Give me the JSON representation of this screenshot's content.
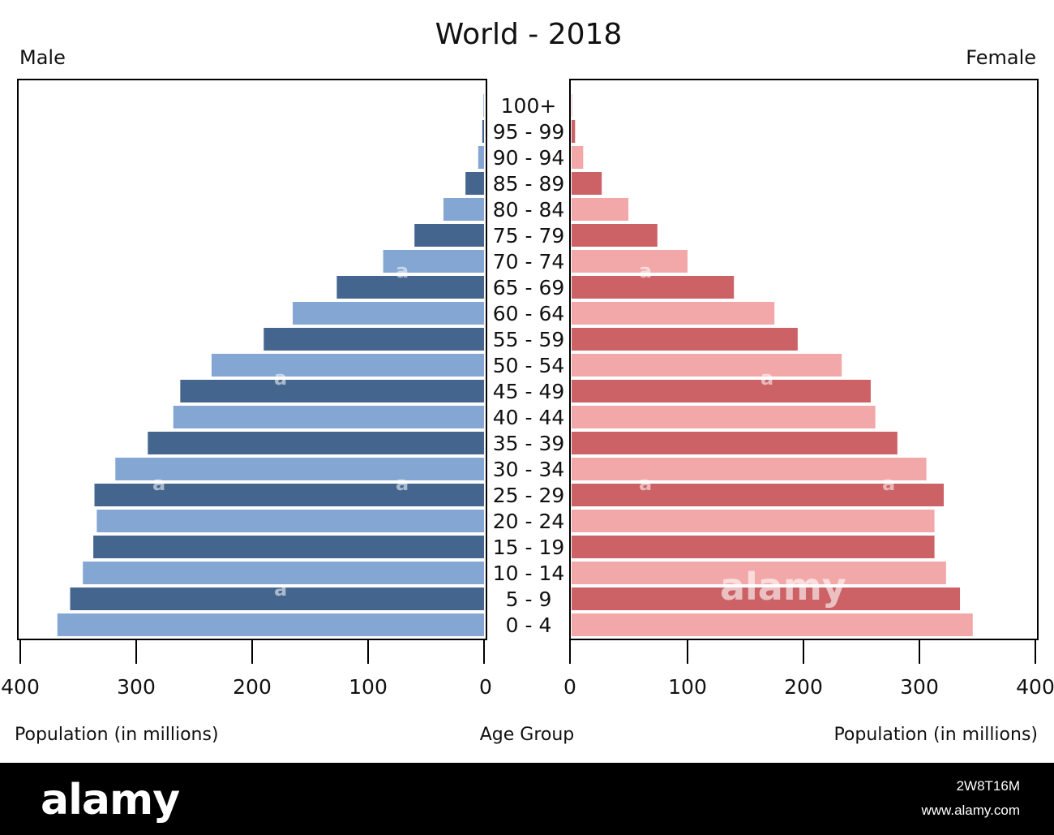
{
  "chart_data": {
    "type": "bar",
    "title": "World - 2018",
    "left_label": "Male",
    "right_label": "Female",
    "center_label": "Age Group",
    "xlabel_left": "Population (in millions)",
    "xlabel_right": "Population (in millions)",
    "xlim": [
      0,
      400
    ],
    "x_ticks": [
      "400",
      "300",
      "200",
      "100",
      "0"
    ],
    "x_ticks_right": [
      "0",
      "100",
      "200",
      "300",
      "400"
    ],
    "categories": [
      "100+",
      "95 - 99",
      "90 - 94",
      "85 - 89",
      "80 - 84",
      "75 - 79",
      "70 - 74",
      "65 - 69",
      "60 - 64",
      "55 - 59",
      "50 - 54",
      "45 - 49",
      "40 - 44",
      "35 - 39",
      "30 - 34",
      "25 - 29",
      "20 - 24",
      "15 - 19",
      "10 - 14",
      "5 - 9",
      "0 - 4"
    ],
    "series": [
      {
        "name": "Male",
        "values": [
          0.5,
          1.5,
          5,
          16,
          35,
          60,
          87,
          127,
          165,
          190,
          235,
          262,
          268,
          290,
          318,
          336,
          334,
          337,
          346,
          357,
          368
        ]
      },
      {
        "name": "Female",
        "values": [
          0.5,
          3,
          10,
          26,
          49,
          74,
          100,
          140,
          175,
          195,
          233,
          258,
          262,
          281,
          306,
          321,
          313,
          313,
          323,
          335,
          346
        ]
      }
    ],
    "colors": {
      "male_dark": "#44668e",
      "male_light": "#84a6d2",
      "female_dark": "#cc6266",
      "female_light": "#f2a8a8"
    },
    "grid": false,
    "legend": "none"
  },
  "watermark": {
    "brand": "alamy",
    "image_id": "2W8T16M",
    "site": "www.alamy.com"
  }
}
